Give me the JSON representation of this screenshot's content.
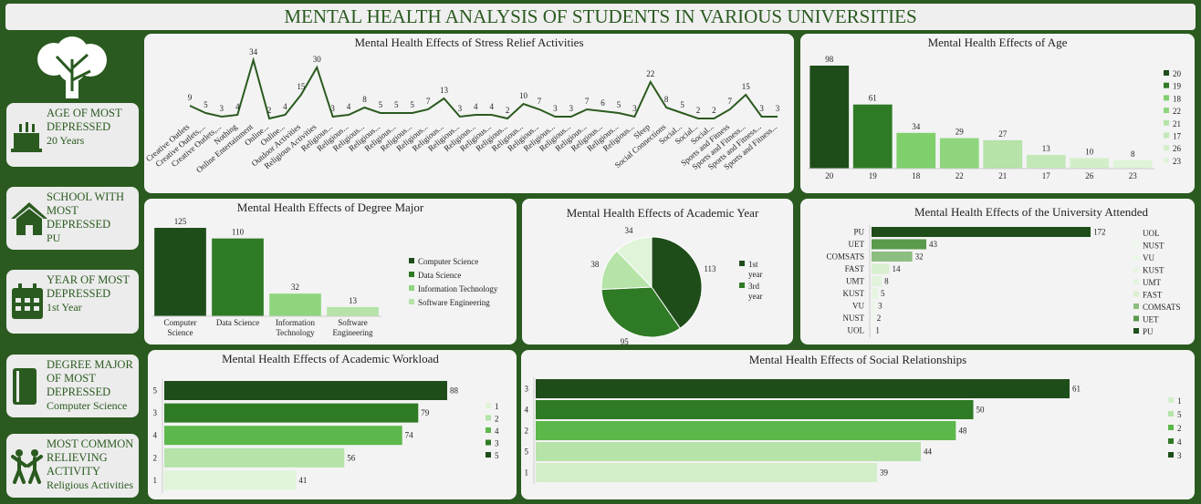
{
  "title": "MENTAL HEALTH ANALYSIS OF STUDENTS IN VARIOUS UNIVERSITIES",
  "kpis": [
    {
      "label": "AGE OF MOST DEPRESSED",
      "value": "20 Years"
    },
    {
      "label": "SCHOOL WITH MOST DEPRESSED",
      "value": "PU"
    },
    {
      "label": "YEAR OF MOST DEPRESSED",
      "value": "1st Year"
    },
    {
      "label": "DEGREE MAJOR OF MOST DEPRESSED",
      "value": "Computer Science"
    },
    {
      "label": "MOST COMMON RELIEVING ACTIVITY",
      "value": "Religious Activities"
    }
  ],
  "chart_data": [
    {
      "type": "line",
      "title": "Mental Health Effects of Stress Relief Activities",
      "color": "#2a5a1f",
      "categories": [
        "Creative Outlets",
        "Creative Outlets,...",
        "Creative Outlets,...",
        "Nothing",
        "Online Entertainment",
        "Online...",
        "Online...",
        "Outdoor Activities",
        "Religious Activities",
        "Religious...",
        "Religious...",
        "Religious...",
        "Religious...",
        "Religious...",
        "Religious...",
        "Religious...",
        "Religious...",
        "Religious...",
        "Religious...",
        "Religious...",
        "Religious...",
        "Religious...",
        "Religious...",
        "Religious...",
        "Religious...",
        "Religious...",
        "Religious...",
        "Religious...",
        "Religious...",
        "Sleep",
        "Social Connections",
        "Social...",
        "Social...",
        "Social...",
        "Sports and Fitness",
        "Sports and Fitness...",
        "Sports and Fitness...",
        "Sports and Fitness..."
      ],
      "values": [
        9,
        5,
        3,
        4,
        34,
        2,
        4,
        15,
        30,
        3,
        4,
        8,
        5,
        5,
        5,
        7,
        13,
        3,
        4,
        4,
        2,
        10,
        7,
        3,
        3,
        7,
        6,
        5,
        3,
        22,
        8,
        5,
        2,
        2,
        7,
        15,
        3,
        3
      ]
    },
    {
      "type": "bar",
      "title": "Mental Health Effects of Age",
      "categories": [
        "20",
        "19",
        "18",
        "22",
        "21",
        "17",
        "26",
        "23"
      ],
      "values": [
        98,
        61,
        34,
        29,
        27,
        13,
        10,
        8
      ],
      "colors": [
        "#1f4d1a",
        "#2f7a25",
        "#7fcf6c",
        "#8fd57e",
        "#b5e3a8",
        "#c3e8b7",
        "#d2eec9",
        "#dff4d8"
      ],
      "legend": "right"
    },
    {
      "type": "bar",
      "title": "Mental Health Effects of Degree Major",
      "categories": [
        "Computer Science",
        "Data Science",
        "Information Technology",
        "Software Engineering"
      ],
      "values": [
        125,
        110,
        32,
        13
      ],
      "colors": [
        "#1f4d1a",
        "#2f7a25",
        "#8fd57e",
        "#b5e3a8"
      ],
      "legend": "right"
    },
    {
      "type": "pie",
      "title": "Mental Health Effects of Academic Year",
      "categories": [
        "1st year",
        "3rd year",
        null,
        null
      ],
      "values": [
        113,
        95,
        38,
        34
      ],
      "colors": [
        "#1f4d1a",
        "#2f7a25",
        "#b5e3a8",
        "#dff4d8"
      ],
      "legend": "right"
    },
    {
      "type": "barh",
      "title": "Mental Health Effects of the University Attended",
      "categories": [
        "PU",
        "UET",
        "COMSATS",
        "FAST",
        "UMT",
        "KUST",
        "VU",
        "NUST",
        "UOL"
      ],
      "values": [
        172,
        43,
        32,
        14,
        8,
        5,
        3,
        2,
        1
      ],
      "colors": [
        "#1f4d1a",
        "#5a9a4c",
        "#8dbd80",
        "#d8efd0",
        "#e2f3dc",
        "#e6f5e1",
        "#eaf6e6",
        "#edf7ea",
        "#f0f8ee"
      ],
      "legend": "right"
    },
    {
      "type": "barh",
      "title": "Mental Health Effects of Academic Workload",
      "categories": [
        "5",
        "3",
        "4",
        "2",
        "1"
      ],
      "values": [
        88,
        79,
        74,
        56,
        41
      ],
      "colors": [
        "#1f4d1a",
        "#2f7a25",
        "#5cb84a",
        "#b5e3a8",
        "#dff4d8"
      ],
      "legend": "right"
    },
    {
      "type": "barh",
      "title": "Mental Health Effects of Social Relationships",
      "categories": [
        "3",
        "4",
        "2",
        "5",
        "1"
      ],
      "values": [
        61,
        50,
        48,
        44,
        39
      ],
      "colors": [
        "#1f4d1a",
        "#2f7a25",
        "#5cb84a",
        "#b5e3a8",
        "#d2eec9"
      ],
      "legend": "right"
    }
  ]
}
